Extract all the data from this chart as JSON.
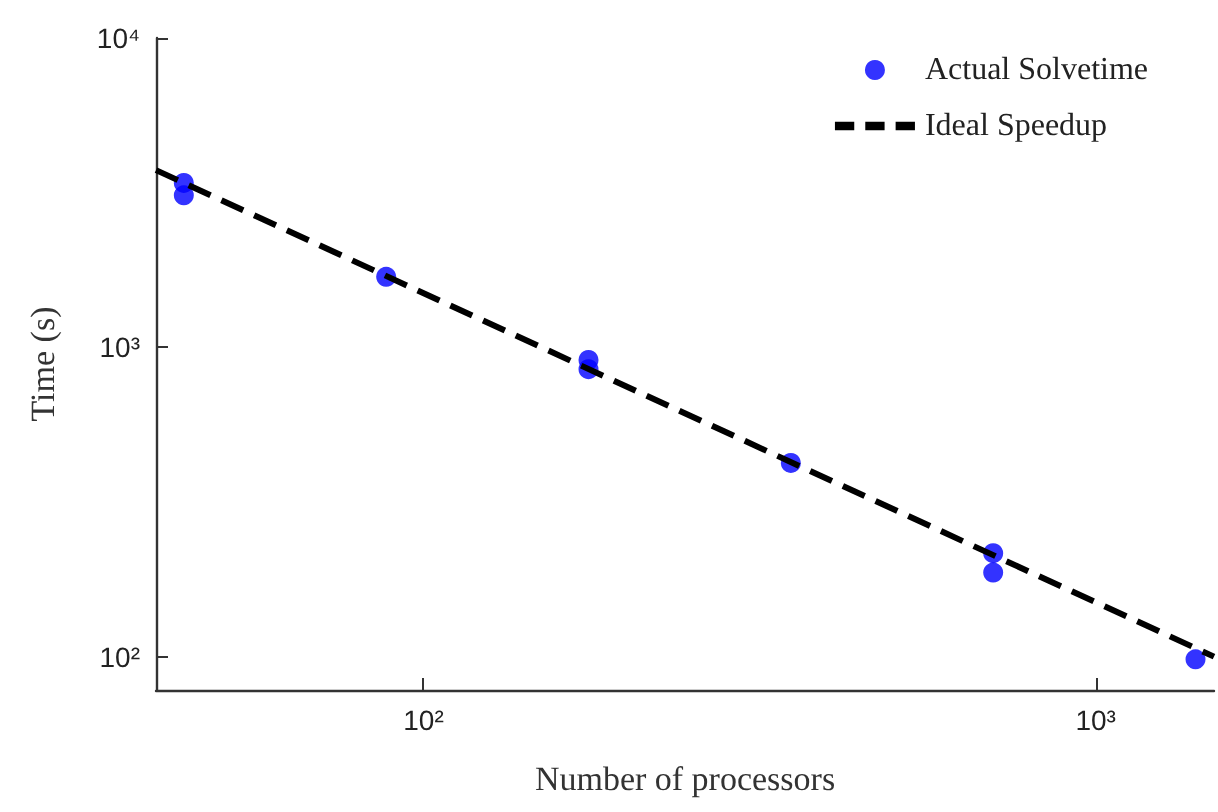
{
  "chart_data": {
    "type": "scatter",
    "xlabel": "Number of processors",
    "ylabel": "Time (s)",
    "log": "xy",
    "xlim": [
      40,
      1500
    ],
    "ylim": [
      78,
      10000
    ],
    "xticks": [
      {
        "value": 100,
        "label": "10²"
      },
      {
        "value": 1000,
        "label": "10³"
      }
    ],
    "yticks": [
      {
        "value": 100,
        "label": "10²"
      },
      {
        "value": 1000,
        "label": "10³"
      },
      {
        "value": 10000,
        "label": "10⁴"
      }
    ],
    "grid": false,
    "legend": "top right",
    "series": [
      {
        "name": "Actual Solvetime",
        "color": "#0000ff",
        "marker": "circle",
        "x": [
          44,
          44,
          88,
          176,
          176,
          352,
          704,
          704,
          1408
        ],
        "values": [
          3400,
          3100,
          1690,
          910,
          850,
          423,
          216,
          187,
          98
        ]
      },
      {
        "name": "Ideal Speedup",
        "type": "line",
        "color": "#000000",
        "line_style": "dashed",
        "marker": "none",
        "x": [
          40,
          1500
        ],
        "values": [
          3740,
          100
        ]
      }
    ]
  }
}
